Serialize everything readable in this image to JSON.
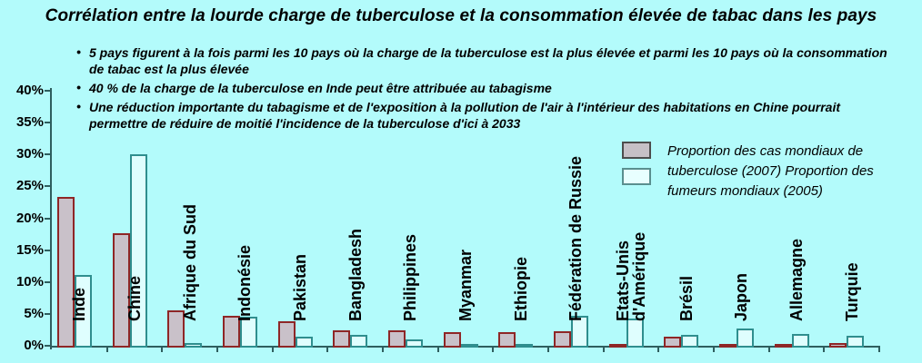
{
  "title": "Corrélation entre la lourde charge de tuberculose et la consommation élevée de tabac dans les pays",
  "bullets": [
    "5 pays figurent à la fois parmi les 10 pays où la charge de la tuberculose est la plus élevée et parmi les 10 pays où la consommation de tabac est la plus élevée",
    "40 % de la charge de la tuberculose en Inde peut être attribuée au tabagisme",
    "Une réduction importante du tabagisme et de l'exposition à la pollution de l'air à l'intérieur des habitations en Chine pourrait permettre de réduire de moitié l'incidence de la tuberculose d'ici à 2033"
  ],
  "chart_data": {
    "type": "bar",
    "categories": [
      "Inde",
      "Chine",
      "Afrique du Sud",
      "Indonésie",
      "Pakistan",
      "Bangladesh",
      "Philippines",
      "Myanmar",
      "Ethiopie",
      "Fédération de Russie",
      "Etats-Unis\nd'Amérique",
      "Brésil",
      "Japon",
      "Allemagne",
      "Turquie"
    ],
    "series": [
      {
        "key": "tuberculose",
        "name": "Proportion des cas mondiaux de tuberculose (2007)",
        "values": [
          23.3,
          17.6,
          5.5,
          4.7,
          3.9,
          2.4,
          2.4,
          2.2,
          2.2,
          2.3,
          0.2,
          1.4,
          0.3,
          0.2,
          0.4
        ],
        "fill": "#c9c1c9",
        "border": "#8e2626"
      },
      {
        "key": "fumeurs",
        "name": "Proportion des fumeurs mondiaux (2005)",
        "values": [
          11.1,
          30.0,
          0.4,
          4.6,
          1.4,
          1.7,
          1.0,
          0.1,
          0.1,
          4.7,
          4.3,
          1.7,
          2.7,
          1.8,
          1.6
        ],
        "fill": "#dffefe",
        "border": "#2f8e8e"
      }
    ],
    "yticks": [
      "0%",
      "5%",
      "10%",
      "15%",
      "20%",
      "25%",
      "30%",
      "35%",
      "40%"
    ],
    "ylim": [
      0,
      40
    ],
    "xlabel": "",
    "ylabel": "",
    "grid": false,
    "legend_position": "inside-top-right"
  },
  "colors": {
    "background": "#b3fbfb",
    "axis": "#2e5e5e",
    "text": "#000000",
    "legend_swatch_tuberculose_fill": "#c6c0c6",
    "legend_swatch_fumeurs_fill": "#e8ffff"
  }
}
